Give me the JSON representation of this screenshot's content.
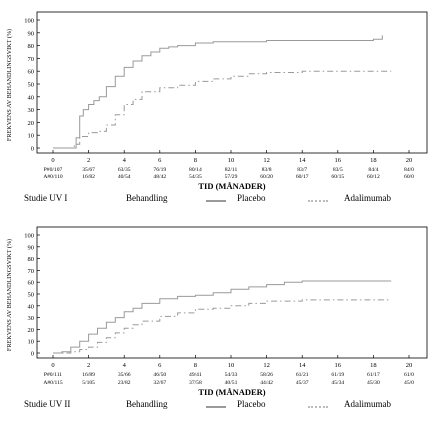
{
  "chart_data": [
    {
      "type": "line",
      "ylabel": "FREKVENS AV BEHANDLINGSVIKT (%)",
      "xlabel": "TID (MÅNADER)",
      "ylim": [
        0,
        100
      ],
      "xlim": [
        0,
        20
      ],
      "y_ticks": [
        "0",
        "10",
        "20",
        "30",
        "40",
        "50",
        "60",
        "70",
        "80",
        "90",
        "100"
      ],
      "x_ticks": [
        "0",
        "2",
        "4",
        "6",
        "8",
        "10",
        "12",
        "14",
        "16",
        "18",
        "20"
      ],
      "risk_table": {
        "row_labels": [
          "P",
          "A"
        ],
        "rows": [
          [
            "#0/107",
            "35/67",
            "63/35",
            "76/19",
            "80/14",
            "82/11",
            "83/8",
            "83/7",
            "83/5",
            "84/4",
            "84/0"
          ],
          [
            "#0/110",
            "16/82",
            "40/54",
            "48/42",
            "54/35",
            "57/29",
            "60/20",
            "60/17",
            "60/15",
            "60/12",
            "60/0"
          ]
        ]
      },
      "series": [
        {
          "name": "Placebo",
          "color": "#9a9a9a",
          "dash": "",
          "x": [
            0,
            1.2,
            1.3,
            1.5,
            1.7,
            2.0,
            2.3,
            2.6,
            3.0,
            3.5,
            4.0,
            4.5,
            5.0,
            5.5,
            6.0,
            6.5,
            7.0,
            8.0,
            9.0,
            10.0,
            11.0,
            12.0,
            14.0,
            16.0,
            17.0,
            18.0,
            18.5
          ],
          "y": [
            0,
            0,
            8,
            25,
            30,
            34,
            37,
            40,
            48,
            56,
            63,
            68,
            72,
            75,
            78,
            79,
            80,
            82,
            83,
            83,
            83,
            84,
            84,
            84,
            84,
            85,
            88
          ]
        },
        {
          "name": "Adalimumab",
          "color": "#9a9a9a",
          "dash": "6,3,1.5,3",
          "x": [
            0,
            1.1,
            1.2,
            1.5,
            2.0,
            2.5,
            3.0,
            3.5,
            4.0,
            4.5,
            5.0,
            6.0,
            7.0,
            8.0,
            9.0,
            10.0,
            11.0,
            12.0,
            14.0,
            16.0,
            18.0,
            19.0
          ],
          "y": [
            0,
            0,
            3,
            9,
            12,
            13,
            18,
            26,
            34,
            38,
            44,
            47,
            49,
            52,
            54,
            56,
            58,
            59,
            60,
            60,
            60,
            60
          ]
        }
      ]
    },
    {
      "type": "line",
      "ylabel": "FREKVENS AV BEHANDLINGSVIKT (%)",
      "xlabel": "TID (MÅNADER)",
      "ylim": [
        0,
        100
      ],
      "xlim": [
        0,
        20
      ],
      "y_ticks": [
        "0",
        "10",
        "20",
        "30",
        "40",
        "50",
        "60",
        "70",
        "80",
        "90",
        "100"
      ],
      "x_ticks": [
        "0",
        "2",
        "4",
        "6",
        "8",
        "10",
        "12",
        "14",
        "16",
        "18",
        "20"
      ],
      "risk_table": {
        "row_labels": [
          "P",
          "A"
        ],
        "rows": [
          [
            "#0/111",
            "16/89",
            "35/66",
            "46/50",
            "49/41",
            "54/33",
            "58/26",
            "61/21",
            "61/19",
            "61/17",
            "61/0"
          ],
          [
            "#0/115",
            "5/105",
            "23/82",
            "32/67",
            "37/58",
            "40/51",
            "44/42",
            "45/37",
            "45/34",
            "45/30",
            "45/0"
          ]
        ]
      },
      "series": [
        {
          "name": "Placebo",
          "color": "#9a9a9a",
          "dash": "",
          "x": [
            0,
            0.5,
            1.0,
            1.5,
            2.0,
            2.5,
            3.0,
            3.5,
            4.0,
            4.5,
            5.0,
            6.0,
            7.0,
            8.0,
            9.0,
            10.0,
            11.0,
            12.0,
            13.0,
            14.0,
            16.0,
            18.0,
            19.0
          ],
          "y": [
            0,
            1,
            5,
            10,
            16,
            21,
            26,
            30,
            35,
            38,
            42,
            46,
            48,
            49,
            51,
            54,
            56,
            58,
            60,
            61,
            61,
            61,
            61
          ]
        },
        {
          "name": "Adalimumab",
          "color": "#9a9a9a",
          "dash": "6,3,1.5,3",
          "x": [
            0,
            1.0,
            1.5,
            2.0,
            2.5,
            3.0,
            3.5,
            4.0,
            4.5,
            5.0,
            6.0,
            7.0,
            8.0,
            9.0,
            10.0,
            11.0,
            12.0,
            14.0,
            16.0,
            18.0,
            19.0
          ],
          "y": [
            0,
            1,
            3,
            5,
            9,
            13,
            17,
            21,
            24,
            27,
            31,
            34,
            37,
            38,
            40,
            42,
            44,
            45,
            45,
            45,
            45
          ]
        }
      ]
    }
  ],
  "panels": [
    {
      "study": "Studie UV I",
      "treatment": "Behandling",
      "legend": [
        "Placebo",
        "Adalimumab"
      ]
    },
    {
      "study": "Studie UV II",
      "treatment": "Behandling",
      "legend": [
        "Placebo",
        "Adalimumab"
      ]
    }
  ]
}
